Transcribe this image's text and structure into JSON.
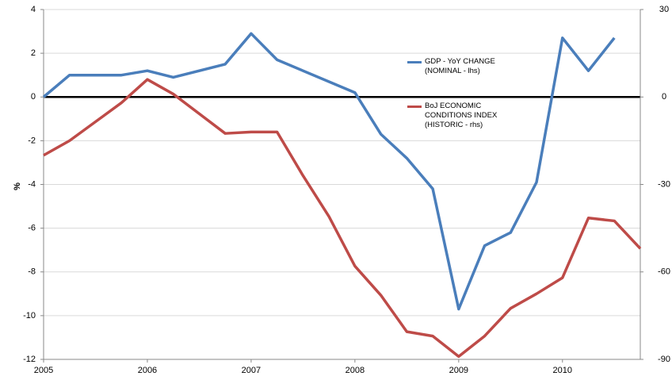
{
  "chart_data": {
    "type": "line",
    "y_label": "%",
    "xlim": [
      2005,
      2010.75
    ],
    "xticks": [
      2005,
      2006,
      2007,
      2008,
      2009,
      2010
    ],
    "ylim": [
      -12,
      4
    ],
    "yticks": [
      -12,
      -10,
      -8,
      -6,
      -4,
      -2,
      0,
      2,
      4
    ],
    "y2lim": [
      -90,
      30
    ],
    "y2ticks": [
      -90,
      -60,
      -30,
      0,
      30
    ],
    "grid": true,
    "series": [
      {
        "name": "GDP - YoY CHANGE (NOMINAL - lhs)",
        "color": "#4a7ebb",
        "x": [
          2005,
          2005.25,
          2005.75,
          2006,
          2006.25,
          2006.75,
          2007,
          2007.25,
          2008,
          2008.25,
          2008.5,
          2008.75,
          2009,
          2009.25,
          2009.5,
          2009.75,
          2010,
          2010.25,
          2010.5
        ],
        "values": [
          0,
          1.0,
          1.0,
          1.2,
          0.9,
          1.5,
          2.9,
          1.7,
          0.2,
          -1.7,
          -2.8,
          -4.2,
          -9.7,
          -6.8,
          -6.2,
          -3.9,
          2.7,
          1.2,
          2.7
        ]
      },
      {
        "name": "BoJ ECONOMIC CONDITIONS INDEX (HISTORIC - rhs)",
        "color": "#be4b48",
        "axis": "y2",
        "x": [
          2005,
          2005.25,
          2005.75,
          2006,
          2006.25,
          2006.75,
          2007,
          2007.25,
          2007.5,
          2007.75,
          2008,
          2008.25,
          2008.5,
          2008.75,
          2009,
          2009.25,
          2009.5,
          2009.75,
          2010,
          2010.25,
          2010.5,
          2010.75
        ],
        "values": [
          -20,
          -15,
          -2,
          6,
          1,
          -12.5,
          -12,
          -12,
          -27,
          -41,
          -58,
          -68,
          -80.5,
          -82,
          -89,
          -82,
          -72.5,
          -67.5,
          -62,
          -41.5,
          -42.5,
          -52
        ]
      }
    ]
  }
}
